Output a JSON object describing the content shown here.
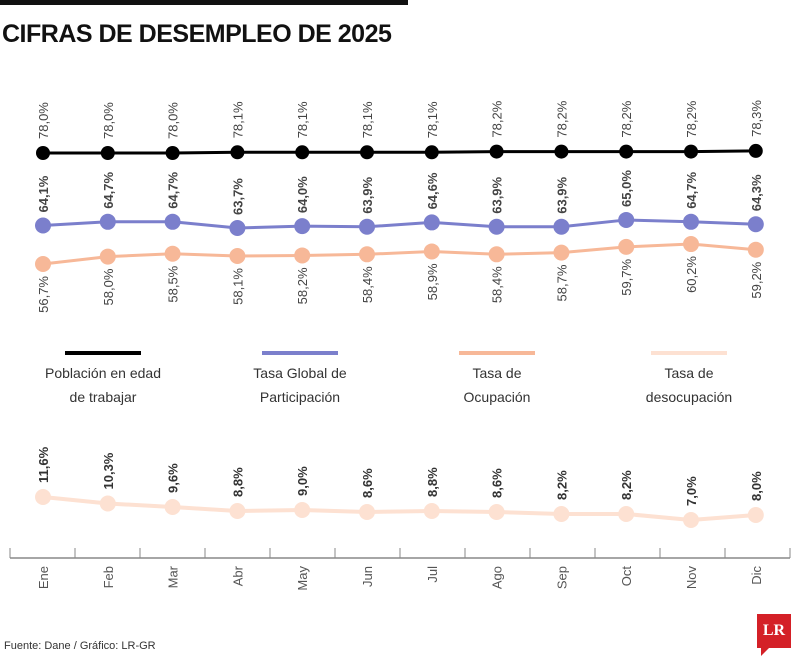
{
  "title": "CIFRAS DE DESEMPLEO DE 2025",
  "source": "Fuente: Dane / Gráfico: LR-GR",
  "logo_text": "LR",
  "chart_data": {
    "type": "line",
    "categories": [
      "Ene",
      "Feb",
      "Mar",
      "Abr",
      "May",
      "Jun",
      "Jul",
      "Ago",
      "Sep",
      "Oct",
      "Nov",
      "Dic"
    ],
    "value_suffix": "%",
    "decimal_separator": ",",
    "legend_placement": "middle",
    "grid": false,
    "series": [
      {
        "name": "Población en edad de trabajar",
        "legend_lines": [
          "Población en edad",
          "de trabajar"
        ],
        "color": "#000000",
        "values": [
          78.0,
          78.0,
          78.0,
          78.1,
          78.1,
          78.1,
          78.1,
          78.2,
          78.2,
          78.2,
          78.2,
          78.3
        ]
      },
      {
        "name": "Tasa Global de Participación",
        "legend_lines": [
          "Tasa Global de",
          "Participación"
        ],
        "color": "#7b7fcc",
        "values": [
          64.1,
          64.7,
          64.7,
          63.7,
          64.0,
          63.9,
          64.6,
          63.9,
          63.9,
          65.0,
          64.7,
          64.3
        ]
      },
      {
        "name": "Tasa de Ocupación",
        "legend_lines": [
          "Tasa de",
          "Ocupación"
        ],
        "color": "#f7b898",
        "values": [
          56.7,
          58.0,
          58.5,
          58.1,
          58.2,
          58.4,
          58.9,
          58.4,
          58.7,
          59.7,
          60.2,
          59.2
        ]
      },
      {
        "name": "Tasa de desocupación",
        "legend_lines": [
          "Tasa de",
          "desocupación"
        ],
        "color": "#fde1d2",
        "values": [
          11.6,
          10.3,
          9.6,
          8.8,
          9.0,
          8.6,
          8.8,
          8.6,
          8.2,
          8.2,
          7.0,
          8.0
        ]
      }
    ]
  }
}
